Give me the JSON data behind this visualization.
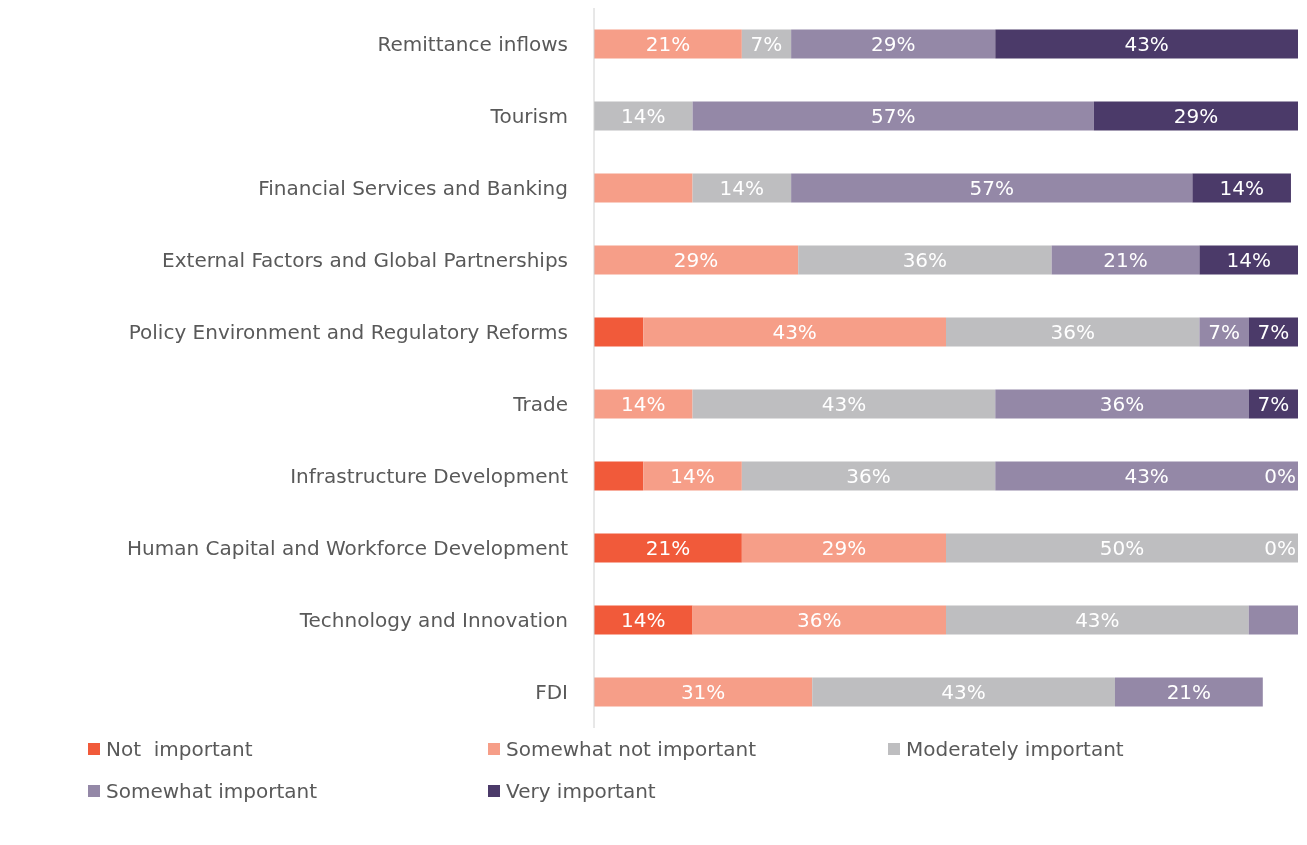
{
  "chart_data": {
    "type": "bar",
    "orientation": "horizontal",
    "stacked": true,
    "legend": "bottom",
    "categories": [
      "Remittance inflows",
      "Tourism",
      "Financial Services and Banking",
      "External Factors and Global Partnerships",
      "Policy Environment and Regulatory Reforms",
      "Trade",
      "Infrastructure Development",
      "Human Capital and Workforce Development",
      "Technology and Innovation",
      "FDI"
    ],
    "series": [
      {
        "name": "Not  important",
        "color": "#f15a3a",
        "values": [
          0,
          0,
          0,
          0,
          7,
          0,
          7,
          21,
          14,
          0
        ],
        "value_labels": [
          null,
          null,
          null,
          null,
          null,
          null,
          null,
          "21%",
          "14%",
          null
        ]
      },
      {
        "name": "Somewhat not important",
        "color": "#f69e88",
        "values": [
          21,
          0,
          14,
          29,
          43,
          14,
          14,
          29,
          36,
          31
        ],
        "value_labels": [
          "21%",
          null,
          null,
          "29%",
          "43%",
          "14%",
          "14%",
          "29%",
          "36%",
          "31%"
        ]
      },
      {
        "name": "Moderately important",
        "color": "#bebec0",
        "values": [
          7,
          14,
          14,
          36,
          36,
          43,
          36,
          50,
          43,
          43
        ],
        "value_labels": [
          "7%",
          "14%",
          "14%",
          "36%",
          "36%",
          "43%",
          "36%",
          "50%",
          "43%",
          "43%"
        ]
      },
      {
        "name": "Somewhat important",
        "color": "#9488a7",
        "values": [
          29,
          57,
          57,
          21,
          7,
          36,
          43,
          0,
          7,
          21
        ],
        "value_labels": [
          "29%",
          "57%",
          "57%",
          "21%",
          "7%",
          "36%",
          "43%",
          null,
          null,
          "21%"
        ]
      },
      {
        "name": "Very important",
        "color": "#4b3a69",
        "values": [
          43,
          29,
          14,
          14,
          7,
          7,
          0,
          0,
          0,
          0
        ],
        "value_labels": [
          "43%",
          "29%",
          "14%",
          "14%",
          "7%",
          "7%",
          "0%",
          "0%",
          null,
          null
        ]
      }
    ]
  }
}
